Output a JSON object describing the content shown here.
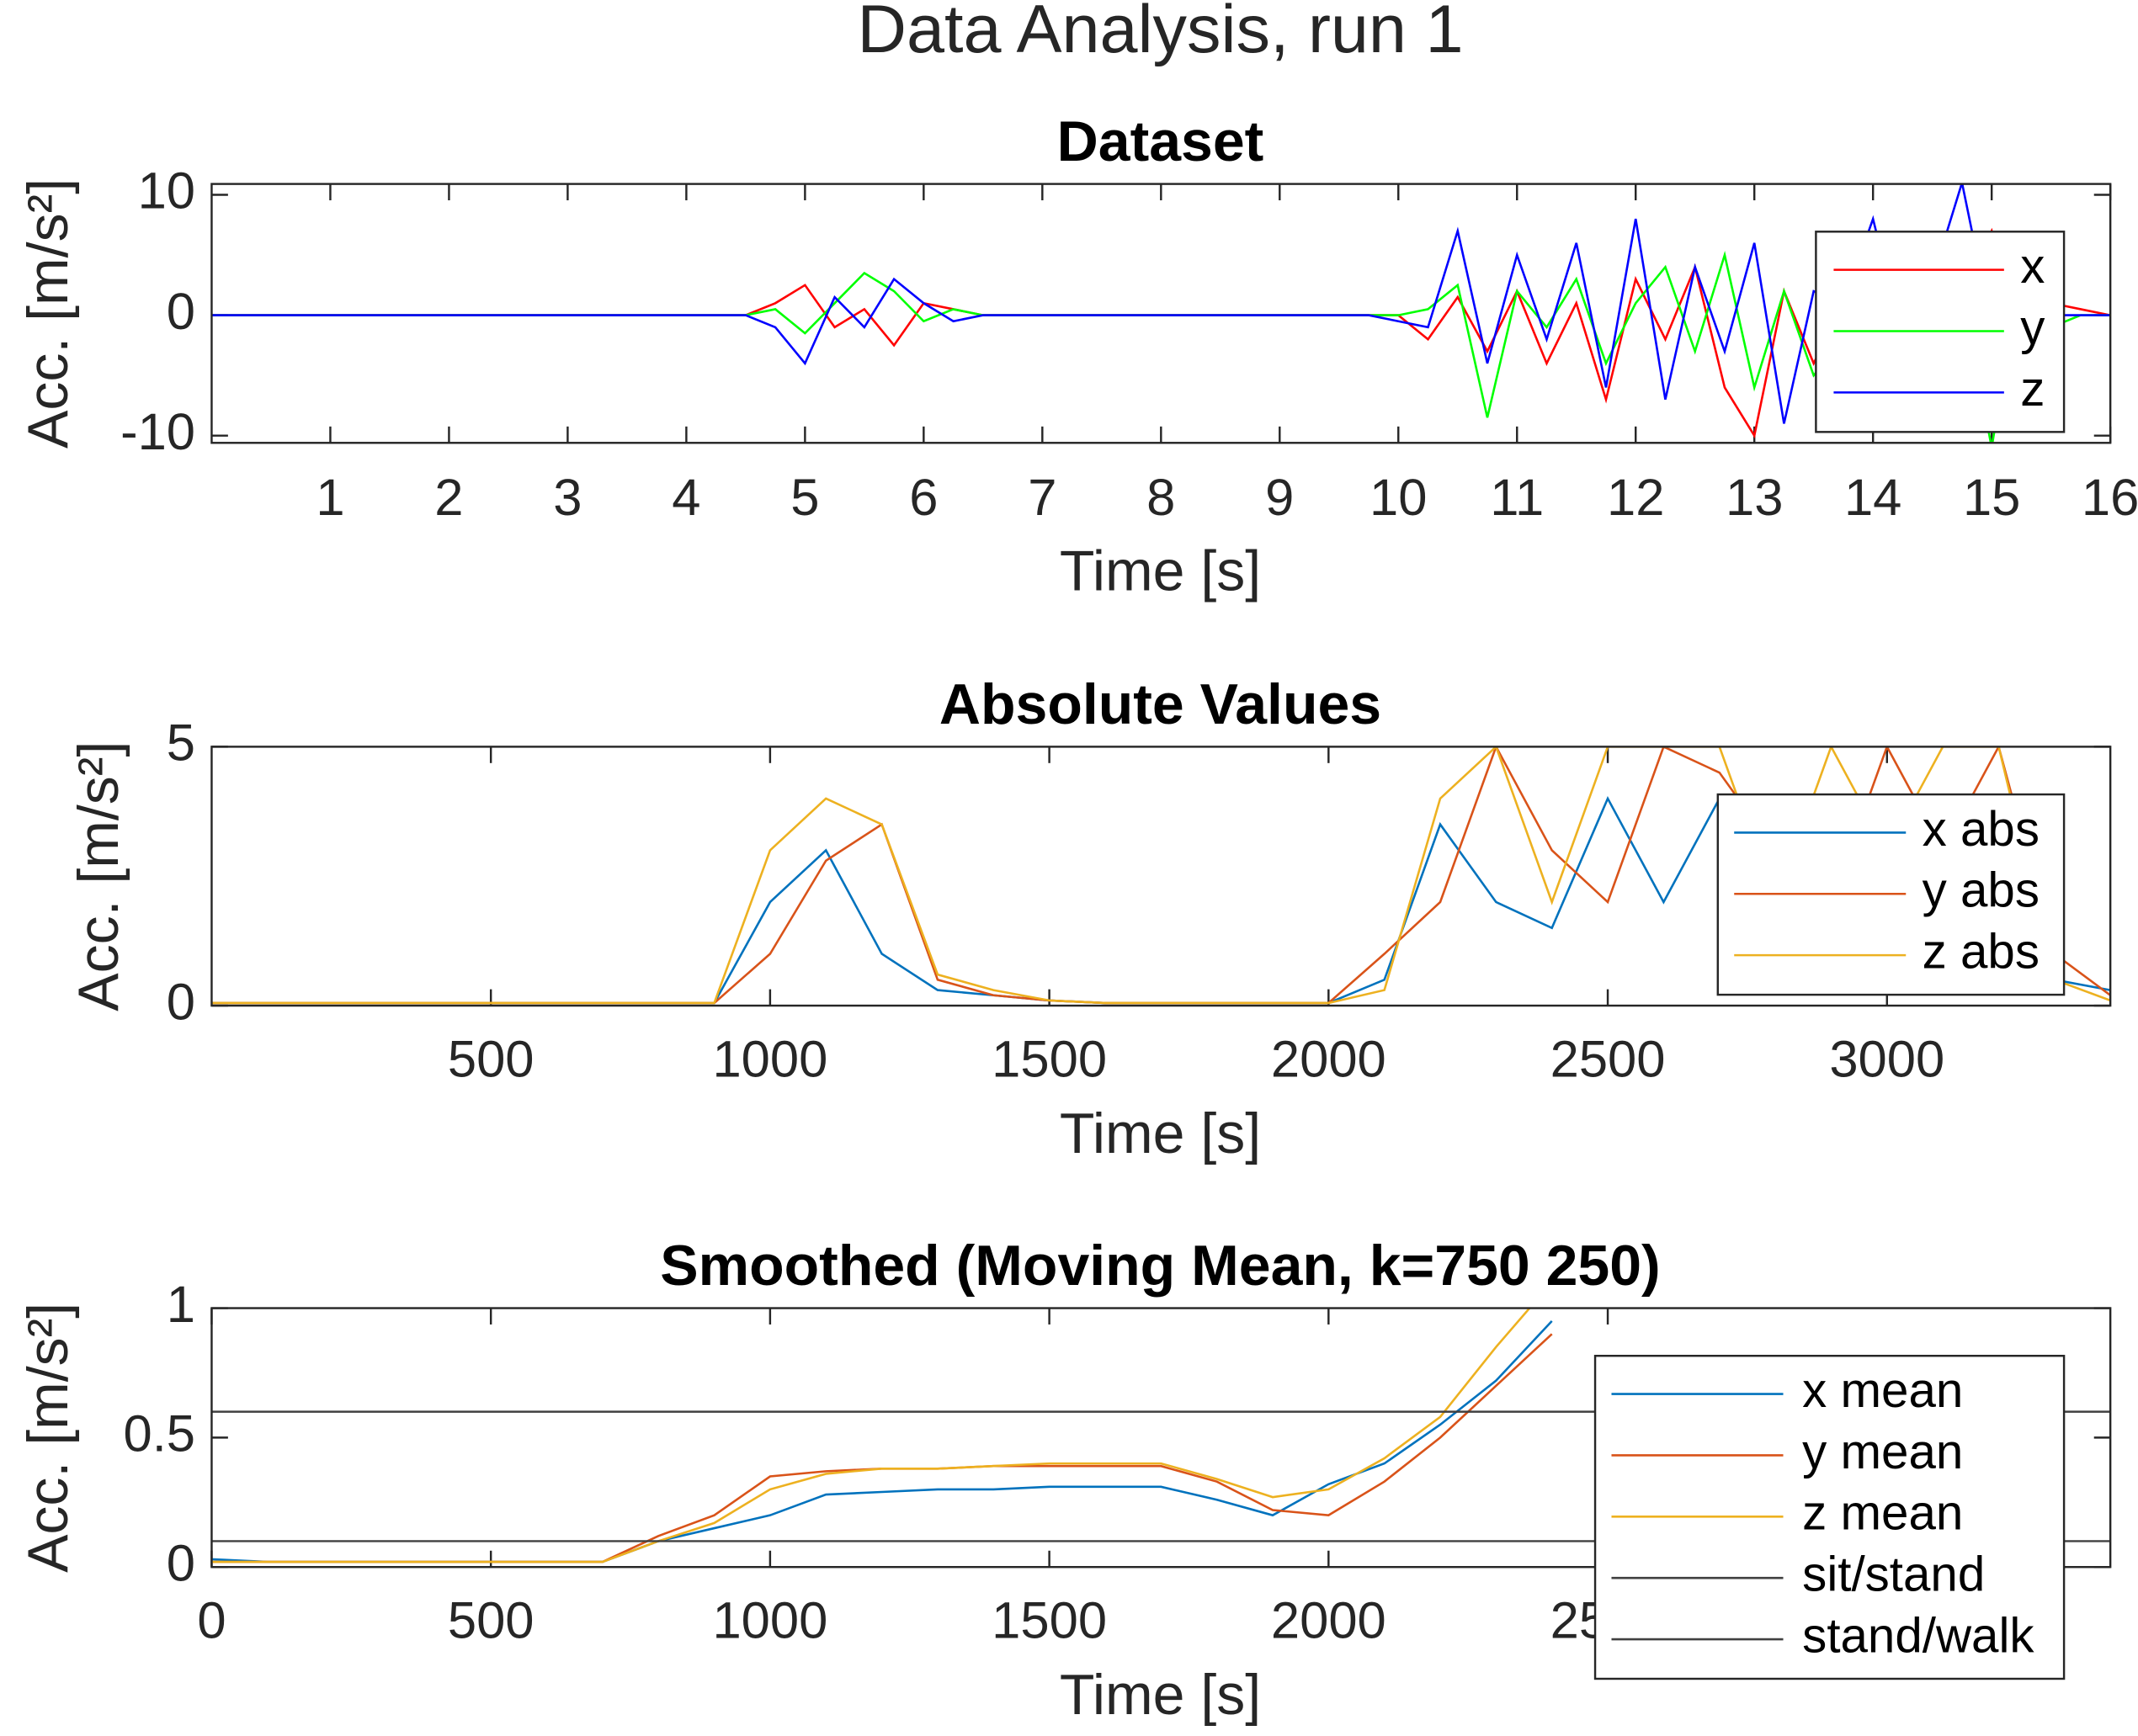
{
  "title": "Data Analysis, run 1",
  "chart_data": [
    {
      "type": "line",
      "title": "Dataset",
      "x_label": "Time [s]",
      "y_label": "Acc. [m/s²]",
      "xlim": [
        0,
        16
      ],
      "ylim": [
        -10.6,
        10.9
      ],
      "xticks": [
        1,
        2,
        3,
        4,
        5,
        6,
        7,
        8,
        9,
        10,
        11,
        12,
        13,
        14,
        15,
        16
      ],
      "yticks": [
        -10,
        0,
        10
      ],
      "legend": "upper right",
      "x": [
        0,
        0.25,
        0.5,
        0.75,
        1,
        1.25,
        1.5,
        1.75,
        2,
        2.25,
        2.5,
        2.75,
        3,
        3.25,
        3.5,
        3.75,
        4,
        4.25,
        4.5,
        4.75,
        5,
        5.25,
        5.5,
        5.75,
        6,
        6.25,
        6.5,
        6.75,
        7,
        7.25,
        7.5,
        7.75,
        8,
        8.25,
        8.5,
        8.75,
        9,
        9.25,
        9.5,
        9.75,
        10,
        10.25,
        10.5,
        10.75,
        11,
        11.25,
        11.5,
        11.75,
        12,
        12.25,
        12.5,
        12.75,
        13,
        13.25,
        13.5,
        13.75,
        14,
        14.25,
        14.5,
        14.75,
        15,
        15.25,
        15.5,
        15.75,
        16
      ],
      "series": [
        {
          "name": "x",
          "color": "#ff0000",
          "values": [
            0,
            0,
            0,
            0,
            0,
            0,
            0,
            0,
            0,
            0,
            0,
            0,
            0,
            0,
            0,
            0,
            0,
            0,
            0,
            1,
            2.5,
            -1,
            0.5,
            -2.5,
            1,
            0.5,
            0,
            0,
            0,
            0,
            0,
            0,
            0,
            0,
            0,
            0,
            0,
            0,
            0,
            0,
            0,
            -2,
            1.5,
            -3,
            2,
            -4,
            1,
            -7,
            3,
            -2,
            4,
            -6,
            -10,
            2,
            -4,
            1,
            -2,
            3,
            -3,
            2,
            7,
            -2,
            1,
            0.5,
            0
          ]
        },
        {
          "name": "y",
          "color": "#00ff00",
          "values": [
            0,
            0,
            0,
            0,
            0,
            0,
            0,
            0,
            0,
            0,
            0,
            0,
            0,
            0,
            0,
            0,
            0,
            0,
            0,
            0.5,
            -1.5,
            1,
            3.5,
            2,
            -0.5,
            0.5,
            0,
            0,
            0,
            0,
            0,
            0,
            0,
            0,
            0,
            0,
            0,
            0,
            0,
            0,
            0,
            0.5,
            2.5,
            -8.5,
            2,
            -1,
            3,
            -4,
            1,
            4,
            -3,
            5,
            -6,
            2,
            -5,
            -2,
            3,
            5,
            -4,
            2,
            -11,
            4,
            -1,
            0,
            0
          ]
        },
        {
          "name": "z",
          "color": "#0000ff",
          "values": [
            0,
            0,
            0,
            0,
            0,
            0,
            0,
            0,
            0,
            0,
            0,
            0,
            0,
            0,
            0,
            0,
            0,
            0,
            0,
            -1,
            -4,
            1.5,
            -1,
            3,
            1,
            -0.5,
            0,
            0,
            0,
            0,
            0,
            0,
            0,
            0,
            0,
            0,
            0,
            0,
            0,
            0,
            -0.5,
            -1,
            7,
            -4,
            5,
            -2,
            6,
            -6,
            8,
            -7,
            4,
            -3,
            6,
            -9,
            2,
            1,
            8,
            -2,
            3,
            11,
            -1,
            1,
            0,
            0,
            0
          ]
        }
      ]
    },
    {
      "type": "line",
      "title": "Absolute Values",
      "x_label": "Time [s]",
      "y_label": "Acc. [m/s²]",
      "xlim": [
        0,
        3400
      ],
      "ylim": [
        0,
        5
      ],
      "xticks": [
        500,
        1000,
        1500,
        2000,
        2500,
        3000
      ],
      "yticks": [
        0,
        5
      ],
      "legend": "upper right",
      "x": [
        0,
        100,
        200,
        300,
        400,
        500,
        600,
        700,
        800,
        900,
        1000,
        1100,
        1200,
        1300,
        1400,
        1500,
        1600,
        1700,
        1800,
        1900,
        2000,
        2100,
        2200,
        2300,
        2400,
        2500,
        2600,
        2700,
        2800,
        2900,
        3000,
        3100,
        3200,
        3300,
        3400
      ],
      "series": [
        {
          "name": "x abs",
          "color": "#0072bd",
          "values": [
            0.05,
            0.05,
            0.05,
            0.05,
            0.05,
            0.05,
            0.05,
            0.05,
            0.05,
            0.05,
            2,
            3,
            1,
            0.3,
            0.2,
            0.1,
            0.05,
            0.05,
            0.05,
            0.05,
            0.05,
            0.5,
            3.5,
            2,
            1.5,
            4,
            2,
            4,
            1,
            4,
            2,
            1,
            1.5,
            0.5,
            0.3
          ]
        },
        {
          "name": "y abs",
          "color": "#d95319",
          "values": [
            0.05,
            0.05,
            0.05,
            0.05,
            0.05,
            0.05,
            0.05,
            0.05,
            0.05,
            0.05,
            1,
            2.8,
            3.5,
            0.5,
            0.2,
            0.1,
            0.05,
            0.05,
            0.05,
            0.05,
            0.05,
            1,
            2,
            5,
            3,
            2,
            5,
            4.5,
            3,
            2,
            5,
            3,
            5,
            1,
            0.2
          ]
        },
        {
          "name": "z abs",
          "color": "#edb120",
          "values": [
            0.05,
            0.05,
            0.05,
            0.05,
            0.05,
            0.05,
            0.05,
            0.05,
            0.05,
            0.05,
            3,
            4,
            3.5,
            0.6,
            0.3,
            0.1,
            0.05,
            0.05,
            0.05,
            0.05,
            0.05,
            0.3,
            4,
            5,
            2,
            5,
            5,
            5,
            2,
            5,
            3,
            5,
            5,
            0.5,
            0.1
          ]
        }
      ]
    },
    {
      "type": "line",
      "title": "Smoothed (Moving Mean, k=750  250)",
      "x_label": "Time [s]",
      "y_label": "Acc. [m/s²]",
      "xlim": [
        0,
        3400
      ],
      "ylim": [
        0,
        1
      ],
      "xticks": [
        0,
        500,
        1000,
        1500,
        2000,
        2500
      ],
      "yticks": [
        0,
        0.5,
        1
      ],
      "legend": "upper right",
      "x": [
        0,
        100,
        200,
        300,
        400,
        500,
        600,
        700,
        800,
        900,
        1000,
        1100,
        1200,
        1300,
        1400,
        1500,
        1600,
        1700,
        1800,
        1900,
        2000,
        2100,
        2200,
        2300,
        2400
      ],
      "series": [
        {
          "name": "x mean",
          "color": "#0072bd",
          "values": [
            0.03,
            0.02,
            0.02,
            0.02,
            0.02,
            0.02,
            0.02,
            0.02,
            0.1,
            0.15,
            0.2,
            0.28,
            0.29,
            0.3,
            0.3,
            0.31,
            0.31,
            0.31,
            0.26,
            0.2,
            0.32,
            0.4,
            0.55,
            0.72,
            0.95
          ]
        },
        {
          "name": "y mean",
          "color": "#d95319",
          "values": [
            0.02,
            0.02,
            0.02,
            0.02,
            0.02,
            0.02,
            0.02,
            0.02,
            0.12,
            0.2,
            0.35,
            0.37,
            0.38,
            0.38,
            0.39,
            0.39,
            0.39,
            0.39,
            0.33,
            0.22,
            0.2,
            0.33,
            0.5,
            0.7,
            0.9
          ]
        },
        {
          "name": "z mean",
          "color": "#edb120",
          "values": [
            0.02,
            0.02,
            0.02,
            0.02,
            0.02,
            0.02,
            0.02,
            0.02,
            0.1,
            0.17,
            0.3,
            0.36,
            0.38,
            0.38,
            0.39,
            0.4,
            0.4,
            0.4,
            0.34,
            0.27,
            0.3,
            0.42,
            0.58,
            0.85,
            1.1
          ]
        }
      ],
      "hlines": [
        {
          "name": "sit/stand",
          "value": 0.1,
          "color": "#404040"
        },
        {
          "name": "stand/walk",
          "value": 0.6,
          "color": "#404040"
        }
      ]
    }
  ]
}
